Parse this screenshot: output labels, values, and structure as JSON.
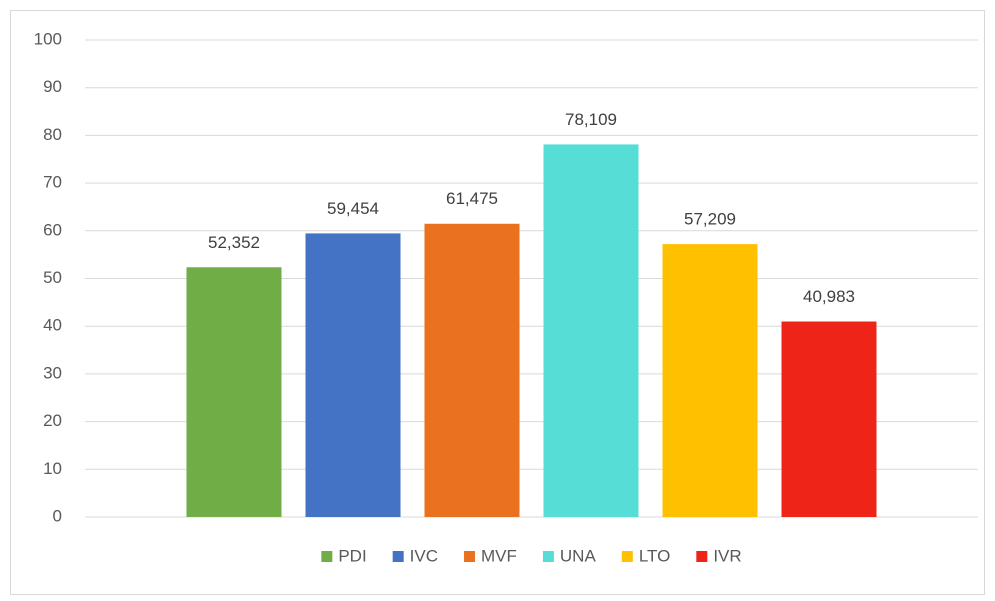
{
  "chart_data": {
    "type": "bar",
    "categories": [
      null
    ],
    "series": [
      {
        "name": "PDI",
        "color": "#70ad47",
        "values": [
          52.352
        ],
        "value_labels": [
          "52,352"
        ]
      },
      {
        "name": "IVC",
        "color": "#4472c4",
        "values": [
          59.454
        ],
        "value_labels": [
          "59,454"
        ]
      },
      {
        "name": "MVF",
        "color": "#ea7120",
        "values": [
          61.475
        ],
        "value_labels": [
          "61,475"
        ]
      },
      {
        "name": "UNA",
        "color": "#56ddd6",
        "values": [
          78.109
        ],
        "value_labels": [
          "78,109"
        ]
      },
      {
        "name": "LTO",
        "color": "#ffc000",
        "values": [
          57.209
        ],
        "value_labels": [
          "57,209"
        ]
      },
      {
        "name": "IVR",
        "color": "#ee2418",
        "values": [
          40.983
        ],
        "value_labels": [
          "40,983"
        ]
      }
    ],
    "ylim": [
      0,
      100
    ],
    "yticks": [
      0,
      10,
      20,
      30,
      40,
      50,
      60,
      70,
      80,
      90,
      100
    ],
    "grid": true,
    "legend": "bottom"
  }
}
